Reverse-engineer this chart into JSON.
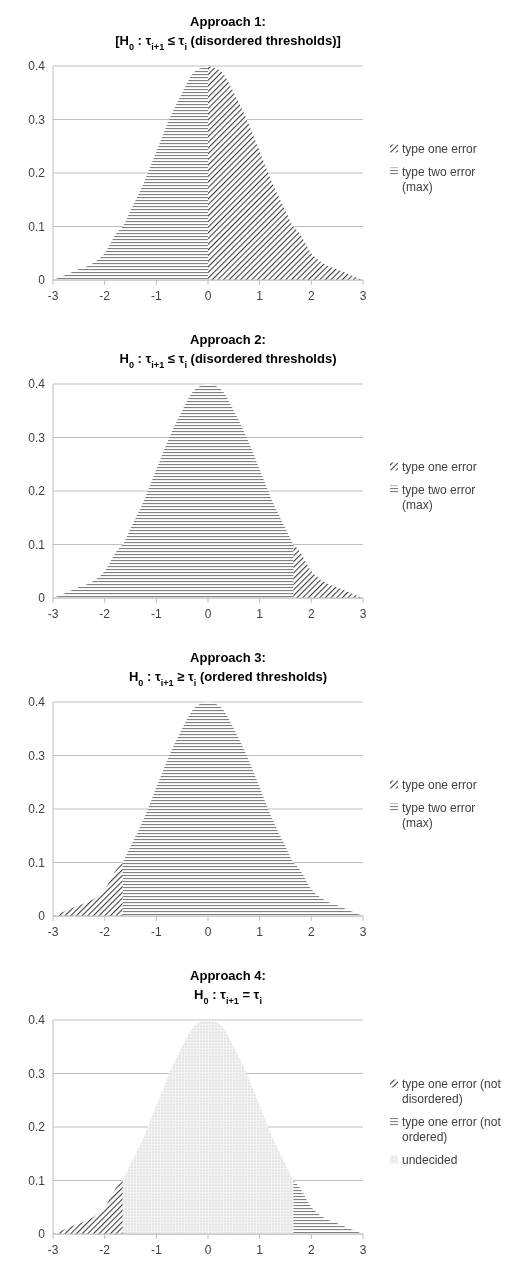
{
  "chart_data": [
    {
      "type": "area",
      "title": "Approach 1:",
      "subtitle": "[H$_{0}$: τ$_{i+1}$ ≤ τ$_{i}$ (disordered thresholds)]",
      "xlim": [
        -3,
        3
      ],
      "xticks": [
        -3,
        -2,
        -1,
        0,
        1,
        2,
        3
      ],
      "ylim": [
        0,
        0.4
      ],
      "yticks": [
        0,
        0.1,
        0.2,
        0.3,
        0.4
      ],
      "grid": "y",
      "legend": "right",
      "series": [
        {
          "name": "type one error",
          "color": "#404040",
          "x": [
            0,
            0.25,
            0.5,
            0.75,
            1,
            1.25,
            1.5,
            1.65,
            1.75,
            2,
            2.25,
            2.5,
            2.75,
            3
          ],
          "values": [
            0.4,
            0.39,
            0.35,
            0.3,
            0.24,
            0.18,
            0.13,
            0.1,
            0.09,
            0.05,
            0.03,
            0.02,
            0.01,
            0
          ]
        },
        {
          "name": "type two error (max)",
          "color": "#808080",
          "x": [
            -3,
            -2.75,
            -2.5,
            -2.25,
            -2,
            -1.75,
            -1.65,
            -1.5,
            -1.25,
            -1,
            -0.75,
            -0.5,
            -0.25,
            0
          ],
          "values": [
            0,
            0.01,
            0.02,
            0.03,
            0.05,
            0.09,
            0.1,
            0.13,
            0.18,
            0.24,
            0.3,
            0.35,
            0.39,
            0.4
          ]
        }
      ]
    },
    {
      "type": "area",
      "title": "Approach 2:",
      "subtitle": "H$_{0}$: τ$_{i+1}$ ≤ τ$_{i}$ (disordered thresholds)",
      "xlim": [
        -3,
        3
      ],
      "xticks": [
        -3,
        -2,
        -1,
        0,
        1,
        2,
        3
      ],
      "ylim": [
        0,
        0.4
      ],
      "yticks": [
        0,
        0.1,
        0.2,
        0.3,
        0.4
      ],
      "grid": "y",
      "legend": "right",
      "series": [
        {
          "name": "type one error",
          "color": "#404040",
          "x": [
            1.65,
            1.75,
            2,
            2.25,
            2.5,
            2.75,
            3
          ],
          "values": [
            0.1,
            0.09,
            0.05,
            0.03,
            0.02,
            0.01,
            0
          ]
        },
        {
          "name": "type two error (max)",
          "color": "#808080",
          "x": [
            -3,
            -2.75,
            -2.5,
            -2.25,
            -2,
            -1.75,
            -1.65,
            -1.5,
            -1.25,
            -1,
            -0.75,
            -0.5,
            -0.25,
            0,
            0.25,
            0.5,
            0.75,
            1,
            1.25,
            1.5,
            1.65
          ],
          "values": [
            0,
            0.01,
            0.02,
            0.03,
            0.05,
            0.09,
            0.1,
            0.13,
            0.18,
            0.24,
            0.3,
            0.35,
            0.39,
            0.4,
            0.39,
            0.35,
            0.3,
            0.24,
            0.18,
            0.13,
            0.1
          ]
        }
      ]
    },
    {
      "type": "area",
      "title": "Approach 3:",
      "subtitle": "H$_{0}$: τ$_{i+1}$ ≥ τ$_{i}$ (ordered thresholds)",
      "xlim": [
        -3,
        3
      ],
      "xticks": [
        -3,
        -2,
        -1,
        0,
        1,
        2,
        3
      ],
      "ylim": [
        0,
        0.4
      ],
      "yticks": [
        0,
        0.1,
        0.2,
        0.3,
        0.4
      ],
      "grid": "y",
      "legend": "right",
      "series": [
        {
          "name": "type one error",
          "color": "#404040",
          "x": [
            -3,
            -2.75,
            -2.5,
            -2.25,
            -2,
            -1.75,
            -1.65
          ],
          "values": [
            0,
            0.01,
            0.02,
            0.03,
            0.05,
            0.09,
            0.1
          ]
        },
        {
          "name": "type two error (max)",
          "color": "#808080",
          "x": [
            -1.65,
            -1.5,
            -1.25,
            -1,
            -0.75,
            -0.5,
            -0.25,
            0,
            0.25,
            0.5,
            0.75,
            1,
            1.25,
            1.5,
            1.65,
            1.75,
            2,
            2.25,
            2.5,
            2.75,
            3
          ],
          "values": [
            0.1,
            0.13,
            0.18,
            0.24,
            0.3,
            0.35,
            0.39,
            0.4,
            0.39,
            0.35,
            0.3,
            0.24,
            0.18,
            0.13,
            0.1,
            0.09,
            0.05,
            0.03,
            0.02,
            0.01,
            0
          ]
        }
      ]
    },
    {
      "type": "area",
      "title": "Approach 4:",
      "subtitle": "H$_{0}$: τ$_{i+1}$ = τ$_{i}$",
      "xlim": [
        -3,
        3
      ],
      "xticks": [
        -3,
        -2,
        -1,
        0,
        1,
        2,
        3
      ],
      "ylim": [
        0,
        0.4
      ],
      "yticks": [
        0,
        0.1,
        0.2,
        0.3,
        0.4
      ],
      "grid": "y",
      "legend": "right",
      "series": [
        {
          "name": "type one error (not disordered)",
          "color": "#404040",
          "x": [
            -3,
            -2.75,
            -2.5,
            -2.25,
            -2,
            -1.75,
            -1.65
          ],
          "values": [
            0,
            0.01,
            0.02,
            0.03,
            0.05,
            0.09,
            0.1
          ]
        },
        {
          "name": "type one error (not ordered)",
          "color": "#808080",
          "x": [
            1.65,
            1.75,
            2,
            2.25,
            2.5,
            2.75,
            3
          ],
          "values": [
            0.1,
            0.09,
            0.05,
            0.03,
            0.02,
            0.01,
            0
          ]
        },
        {
          "name": "undecided",
          "color": "#bfbfbf",
          "x": [
            -1.65,
            -1.5,
            -1.25,
            -1,
            -0.75,
            -0.5,
            -0.25,
            0,
            0.25,
            0.5,
            0.75,
            1,
            1.25,
            1.5,
            1.65
          ],
          "values": [
            0.1,
            0.13,
            0.18,
            0.24,
            0.3,
            0.35,
            0.39,
            0.4,
            0.39,
            0.35,
            0.3,
            0.24,
            0.18,
            0.13,
            0.1
          ]
        }
      ]
    }
  ]
}
